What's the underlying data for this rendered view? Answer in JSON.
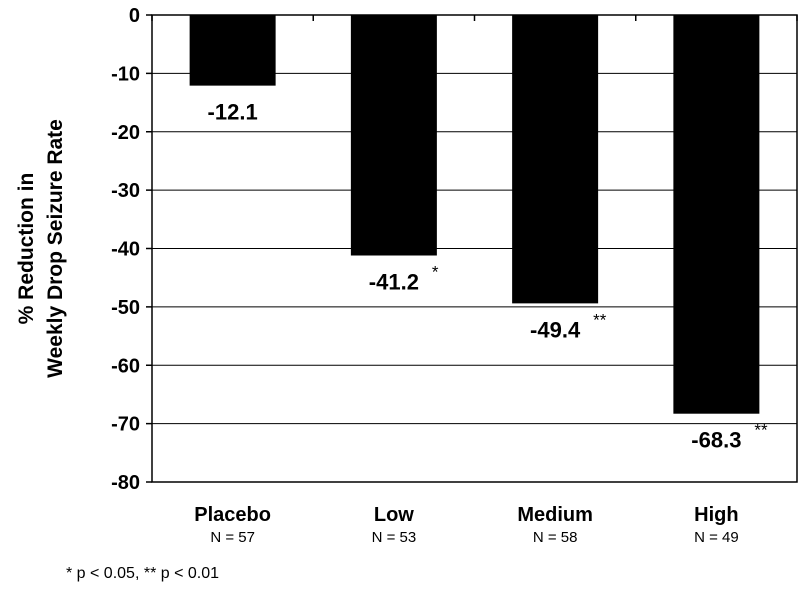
{
  "chart_data": {
    "type": "bar",
    "categories": [
      "Placebo",
      "Low",
      "Medium",
      "High"
    ],
    "n_labels": [
      "N = 57",
      "N = 53",
      "N = 58",
      "N = 49"
    ],
    "values": [
      -12.1,
      -41.2,
      -49.4,
      -68.3
    ],
    "value_labels": [
      "-12.1",
      "-41.2",
      "-49.4",
      "-68.3"
    ],
    "significance": [
      "",
      "*",
      "**",
      "**"
    ],
    "ylabel_lines": [
      "% Reduction in",
      "Weekly Drop Seizure Rate"
    ],
    "xlabel": "",
    "ylim": [
      -80,
      0
    ],
    "yticks": [
      0,
      -10,
      -20,
      -30,
      -40,
      -50,
      -60,
      -70,
      -80
    ],
    "grid": true,
    "bar_color": "#000000",
    "footnote": "* p < 0.05, ** p < 0.01"
  }
}
